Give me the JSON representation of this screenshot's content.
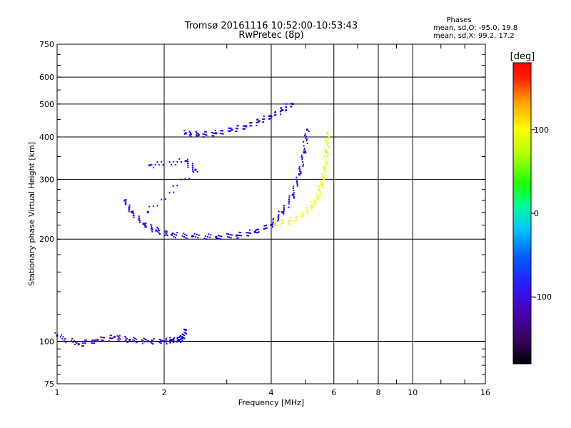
{
  "chart_data": {
    "type": "scatter",
    "title": "Tromsø 20161116 10:52:00-10:53:43",
    "subtitle": "RwPretec (8p)",
    "stats": {
      "heading": "Phases",
      "line_o": "mean, sd,O: -95.0, 19.8",
      "line_x": "mean, sd,X:  99.2, 17.2"
    },
    "xlabel": "Frequency [MHz]",
    "ylabel": "Stationary phase Virtual Height [km]",
    "xscale": "log",
    "yscale": "log",
    "xlim": [
      1,
      16
    ],
    "ylim": [
      75,
      750
    ],
    "x_ticks": [
      1,
      2,
      4,
      6,
      8,
      10,
      16
    ],
    "x_tick_labels": [
      "1",
      "2",
      "4",
      "6",
      "8",
      "10",
      "16"
    ],
    "y_ticks": [
      75,
      100,
      200,
      300,
      400,
      500,
      600,
      750
    ],
    "y_tick_labels": [
      "75",
      "100",
      "200",
      "300",
      "400",
      "500",
      "600",
      "750"
    ],
    "grid": true,
    "colorbar": {
      "label": "[deg]",
      "range": [
        -180,
        180
      ],
      "ticks": [
        -100,
        0,
        100
      ],
      "tick_labels": [
        "-100",
        "0",
        "100"
      ]
    },
    "series": [
      {
        "points": [
          [
            1.0,
            104,
            -110
          ],
          [
            1.15,
            98,
            -115
          ],
          [
            1.3,
            101,
            -120
          ],
          [
            1.45,
            103,
            -118
          ],
          [
            1.6,
            101,
            -112
          ],
          [
            1.8,
            100,
            -105
          ],
          [
            2.0,
            100,
            -100
          ],
          [
            2.1,
            101,
            -98
          ],
          [
            2.2,
            101,
            -95
          ],
          [
            2.25,
            102,
            -90
          ],
          [
            2.3,
            108,
            -85
          ]
        ]
      },
      {
        "points": [
          [
            1.55,
            260,
            -120
          ],
          [
            1.62,
            240,
            -118
          ],
          [
            1.75,
            222,
            -112
          ],
          [
            1.9,
            212,
            -105
          ],
          [
            2.1,
            206,
            -100
          ],
          [
            2.4,
            204,
            -95
          ],
          [
            2.8,
            203,
            -92
          ],
          [
            3.2,
            205,
            -92
          ],
          [
            3.6,
            210,
            -95
          ],
          [
            4.0,
            220,
            -97
          ],
          [
            4.3,
            240,
            -95
          ],
          [
            4.6,
            270,
            -95
          ],
          [
            4.8,
            310,
            -95
          ],
          [
            4.95,
            360,
            -95
          ],
          [
            5.05,
            420,
            -97
          ]
        ]
      },
      {
        "points": [
          [
            4.1,
            222,
            110
          ],
          [
            4.5,
            226,
            105
          ],
          [
            4.9,
            235,
            100
          ],
          [
            5.2,
            250,
            98
          ],
          [
            5.4,
            265,
            100
          ],
          [
            5.55,
            290,
            98
          ],
          [
            5.65,
            320,
            95
          ],
          [
            5.72,
            360,
            93
          ],
          [
            5.75,
            410,
            95
          ]
        ]
      },
      {
        "points": [
          [
            2.3,
            410,
            -100
          ],
          [
            2.5,
            406,
            -102
          ],
          [
            2.8,
            410,
            -105
          ],
          [
            3.1,
            420,
            -100
          ],
          [
            3.4,
            430,
            -100
          ],
          [
            3.7,
            445,
            -98
          ],
          [
            4.0,
            460,
            -98
          ],
          [
            4.3,
            480,
            -95
          ],
          [
            4.6,
            500,
            -95
          ]
        ]
      },
      {
        "points": [
          [
            1.82,
            330,
            -115
          ],
          [
            2.3,
            340,
            -100
          ],
          [
            2.45,
            320,
            -95
          ],
          [
            1.8,
            240,
            -110
          ]
        ]
      }
    ]
  }
}
